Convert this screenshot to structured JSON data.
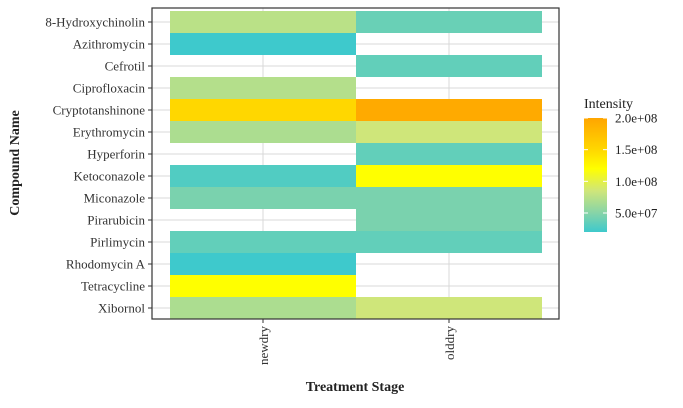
{
  "chart_data": {
    "type": "heatmap",
    "title": "",
    "xlabel": "Treatment Stage",
    "ylabel": "Compound Name",
    "x_categories": [
      "newdry",
      "olddry"
    ],
    "y_categories": [
      "8-Hydroxychinolin",
      "Azithromycin",
      "Cefrotil",
      "Ciprofloxacin",
      "Cryptotanshinone",
      "Erythromycin",
      "Hyperforin",
      "Ketoconazole",
      "Miconazole",
      "Pirarubicin",
      "Pirlimycin",
      "Rhodomycin A",
      "Tetracycline",
      "Xibornol"
    ],
    "cells": [
      {
        "x": "newdry",
        "y": "8-Hydroxychinolin",
        "value": 75000000
      },
      {
        "x": "olddry",
        "y": "8-Hydroxychinolin",
        "value": 38000000
      },
      {
        "x": "newdry",
        "y": "Azithromycin",
        "value": 20000000
      },
      {
        "x": "olddry",
        "y": "Cefrotil",
        "value": 35000000
      },
      {
        "x": "newdry",
        "y": "Ciprofloxacin",
        "value": 72000000
      },
      {
        "x": "newdry",
        "y": "Cryptotanshinone",
        "value": 150000000
      },
      {
        "x": "olddry",
        "y": "Cryptotanshinone",
        "value": 195000000
      },
      {
        "x": "newdry",
        "y": "Erythromycin",
        "value": 68000000
      },
      {
        "x": "olddry",
        "y": "Erythromycin",
        "value": 85000000
      },
      {
        "x": "olddry",
        "y": "Hyperforin",
        "value": 35000000
      },
      {
        "x": "newdry",
        "y": "Ketoconazole",
        "value": 28000000
      },
      {
        "x": "olddry",
        "y": "Ketoconazole",
        "value": 120000000
      },
      {
        "x": "newdry",
        "y": "Miconazole",
        "value": 45000000
      },
      {
        "x": "olddry",
        "y": "Miconazole",
        "value": 45000000
      },
      {
        "x": "olddry",
        "y": "Pirarubicin",
        "value": 45000000
      },
      {
        "x": "newdry",
        "y": "Pirlimycin",
        "value": 35000000
      },
      {
        "x": "olddry",
        "y": "Pirlimycin",
        "value": 35000000
      },
      {
        "x": "newdry",
        "y": "Rhodomycin A",
        "value": 20000000
      },
      {
        "x": "newdry",
        "y": "Tetracycline",
        "value": 120000000
      },
      {
        "x": "newdry",
        "y": "Xibornol",
        "value": 68000000
      },
      {
        "x": "olddry",
        "y": "Xibornol",
        "value": 85000000
      }
    ],
    "color_scale": {
      "range": [
        20000000,
        200000000
      ],
      "stops": [
        {
          "value": 20000000,
          "color": "#3ec9cc"
        },
        {
          "value": 50000000,
          "color": "#86d4a8"
        },
        {
          "value": 85000000,
          "color": "#cfe67a"
        },
        {
          "value": 120000000,
          "color": "#ffff00"
        },
        {
          "value": 150000000,
          "color": "#ffd700"
        },
        {
          "value": 200000000,
          "color": "#ffa500"
        }
      ]
    },
    "legend": {
      "title": "Intensity",
      "ticks": [
        {
          "value": 200000000,
          "label": "2.0e+08"
        },
        {
          "value": 150000000,
          "label": "1.5e+08"
        },
        {
          "value": 100000000,
          "label": "1.0e+08"
        },
        {
          "value": 50000000,
          "label": "5.0e+07"
        }
      ],
      "position": "right"
    },
    "grid": true
  }
}
